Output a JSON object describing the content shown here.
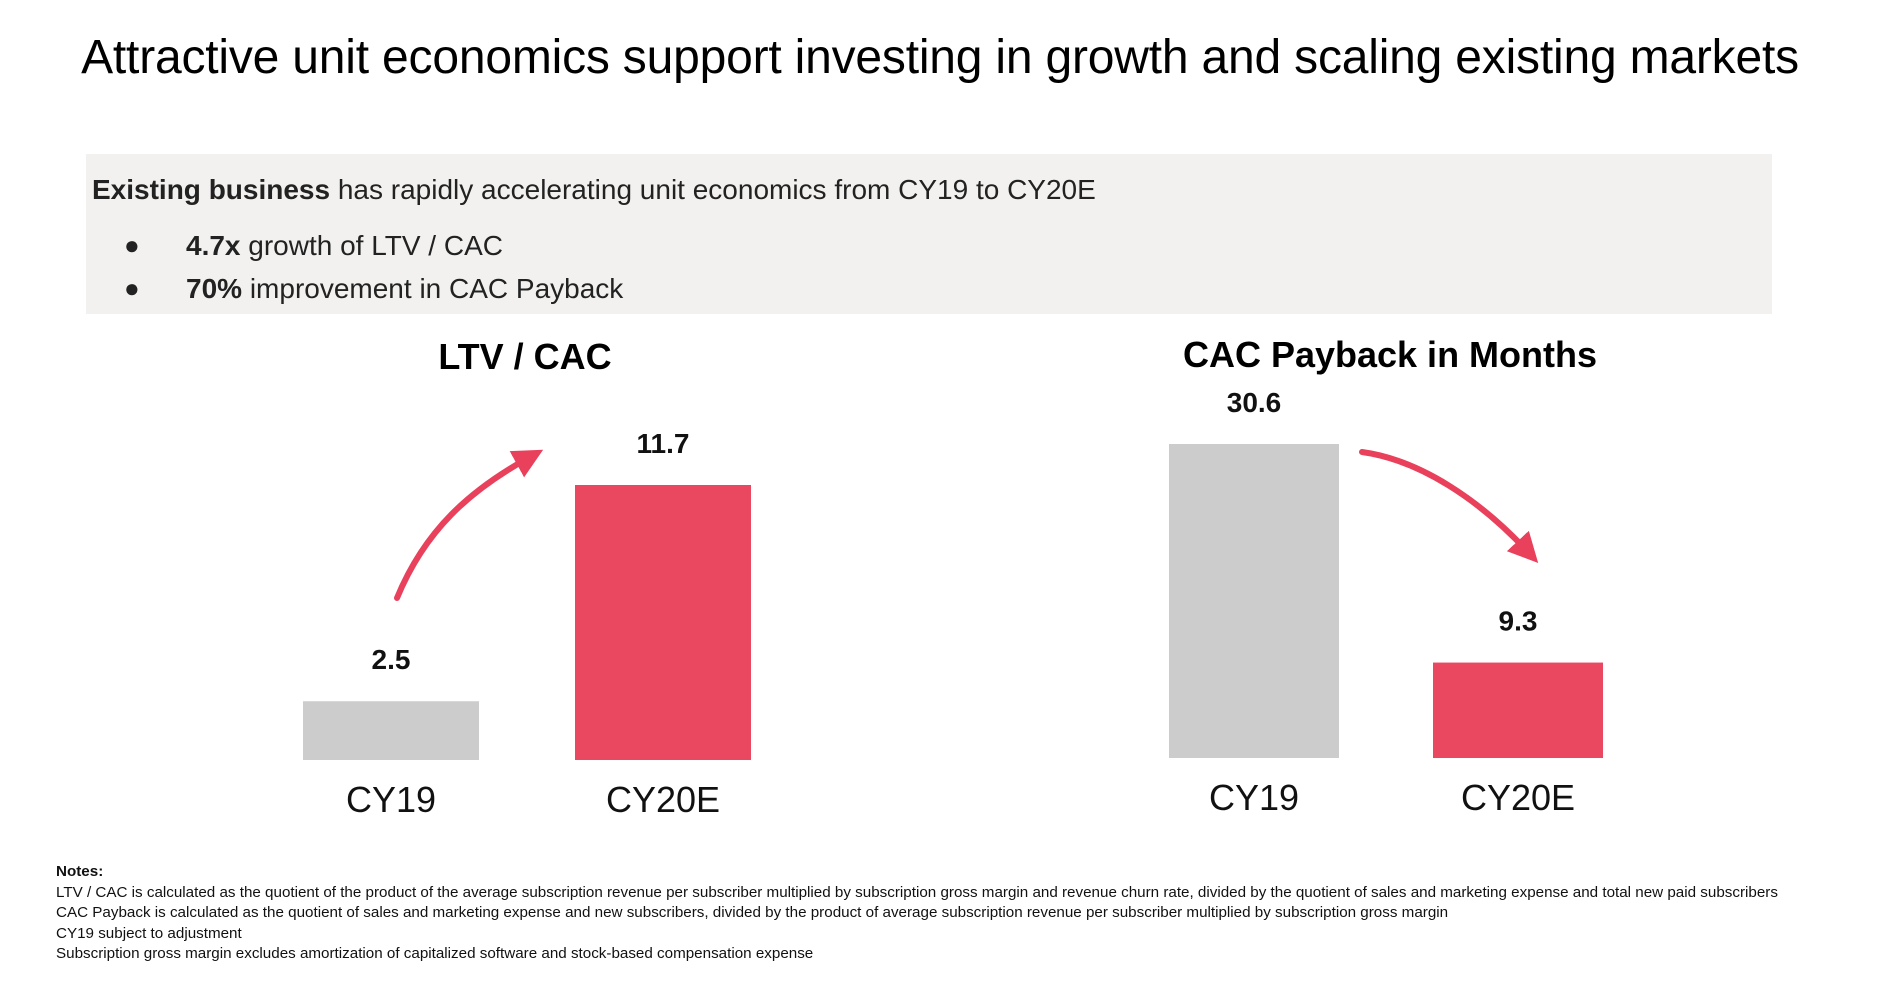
{
  "title": "Attractive unit economics support investing in growth and scaling existing markets",
  "summary": {
    "lead_bold": "Existing business",
    "lead_rest": " has rapidly accelerating unit economics from CY19 to CY20E",
    "bullets": [
      {
        "bold": "4.7x",
        "rest": " growth of LTV / CAC"
      },
      {
        "bold": "70%",
        "rest": " improvement in CAC Payback"
      }
    ]
  },
  "colors": {
    "prior": "#cccccc",
    "current": "#ea4760",
    "arrow": "#e9405c"
  },
  "chart_data": [
    {
      "type": "bar",
      "title": "LTV / CAC",
      "categories": [
        "CY19",
        "CY20E"
      ],
      "values": [
        2.5,
        11.7
      ],
      "value_labels": [
        "2.5",
        "11.7"
      ],
      "ylim": [
        0,
        11.7
      ],
      "grid": false,
      "trend_arrow": "up"
    },
    {
      "type": "bar",
      "title": "CAC Payback in Months",
      "categories": [
        "CY19",
        "CY20E"
      ],
      "values": [
        30.6,
        9.3
      ],
      "value_labels": [
        "30.6",
        "9.3"
      ],
      "ylim": [
        0,
        30.6
      ],
      "grid": false,
      "trend_arrow": "down"
    }
  ],
  "notes": {
    "heading": "Notes:",
    "lines": [
      "LTV / CAC is calculated as the quotient of the product of the average subscription revenue per subscriber multiplied by subscription gross margin and revenue churn rate, divided by the quotient of sales and marketing expense and total new paid  subscribers",
      "CAC Payback is calculated as the quotient of sales and marketing expense and new subscribers, divided by the product of average subscription revenue per subscriber multiplied by subscription gross margin",
      "CY19 subject to adjustment",
      "Subscription gross margin excludes amortization of capitalized software and stock-based compensation expense"
    ]
  }
}
